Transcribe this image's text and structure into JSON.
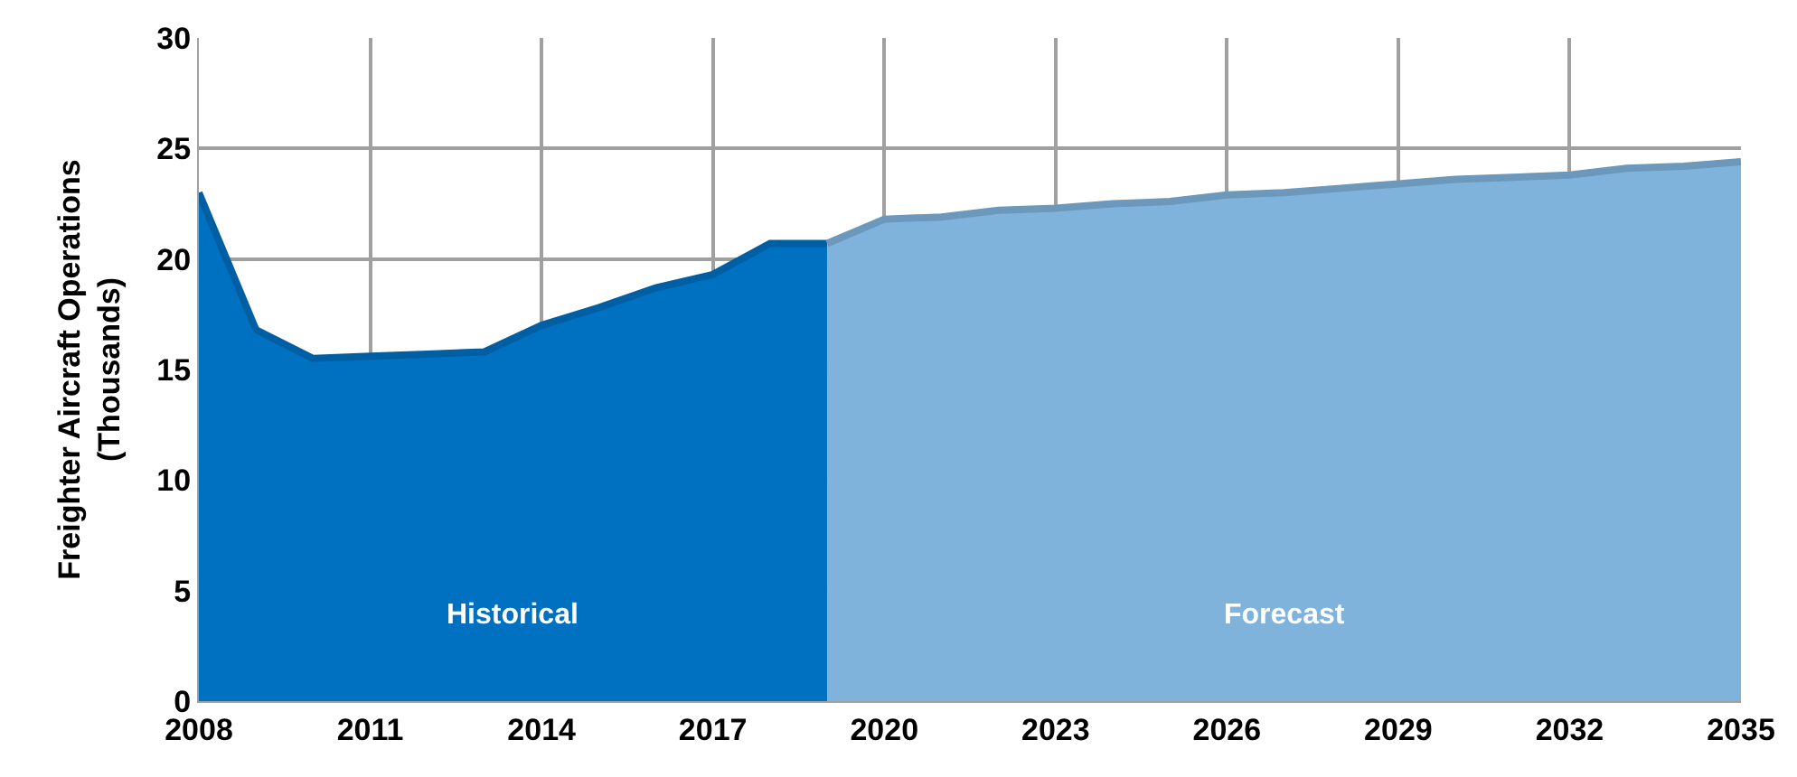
{
  "chart_data": {
    "type": "area",
    "ylabel": "Freighter Aircraft Operations\n(Thousands)",
    "xlim": [
      2008,
      2035
    ],
    "xticks": [
      2008,
      2011,
      2014,
      2017,
      2020,
      2023,
      2026,
      2029,
      2032,
      2035
    ],
    "ylim": [
      0,
      30
    ],
    "yticks": [
      0,
      5,
      10,
      15,
      20,
      25,
      30
    ],
    "grid": true,
    "legend": false,
    "series": [
      {
        "name": "Historical",
        "color": "#0070c0",
        "x": [
          2008,
          2009,
          2010,
          2011,
          2012,
          2013,
          2014,
          2015,
          2016,
          2017,
          2018,
          2019
        ],
        "values": [
          23.0,
          16.8,
          15.5,
          15.6,
          15.7,
          15.8,
          17.0,
          17.8,
          18.7,
          19.3,
          20.7,
          20.7
        ]
      },
      {
        "name": "Forecast",
        "color": "#7fb3dc",
        "x": [
          2019,
          2020,
          2021,
          2022,
          2023,
          2024,
          2025,
          2026,
          2027,
          2028,
          2029,
          2030,
          2031,
          2032,
          2033,
          2034,
          2035
        ],
        "values": [
          20.7,
          21.8,
          21.9,
          22.2,
          22.3,
          22.5,
          22.6,
          22.9,
          23.0,
          23.2,
          23.4,
          23.6,
          23.7,
          23.8,
          24.1,
          24.2,
          24.4
        ]
      }
    ]
  }
}
